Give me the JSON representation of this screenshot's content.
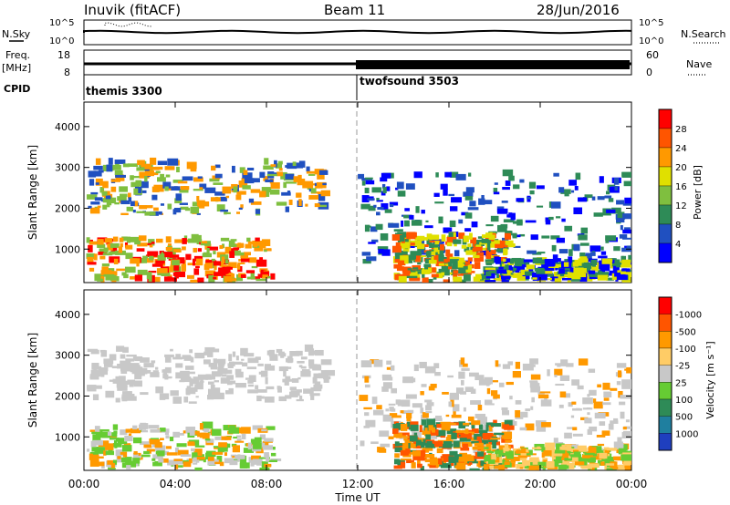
{
  "header": {
    "station": "Inuvik (fitACF)",
    "beam": "Beam 11",
    "date": "28/Jun/2016"
  },
  "aux_panels": {
    "nsky_label": "N.Sky",
    "nsky_ticks": [
      "10^5",
      "10^0"
    ],
    "nsearch_label": "N.Search",
    "nsearch_ticks": [
      "10^5",
      "10^0"
    ],
    "freq_label_1": "Freq.",
    "freq_label_2": "[MHz]",
    "freq_ticks": [
      "18",
      "8"
    ],
    "nave_label": "Nave",
    "nave_ticks": [
      "60",
      "0"
    ],
    "cpid_label": "CPID",
    "cpid_modes": [
      {
        "name": "themis 3300",
        "start_hour": 0
      },
      {
        "name": "twofsound 3503",
        "start_hour": 12
      }
    ]
  },
  "chart_data": [
    {
      "type": "heatmap",
      "title": "",
      "xlabel": "Time UT",
      "ylabel": "Slant Range [km]",
      "x_ticks": [
        "00:00",
        "04:00",
        "08:00",
        "12:00",
        "16:00",
        "20:00",
        "00:00"
      ],
      "x_range_hours": [
        0,
        24
      ],
      "y_ticks": [
        "1000",
        "2000",
        "3000",
        "4000"
      ],
      "ylim": [
        180,
        4600
      ],
      "colorbar": {
        "label": "Power [dB]",
        "ticks": [
          "4",
          "8",
          "12",
          "16",
          "20",
          "24",
          "28"
        ],
        "colors": [
          "#0000ff",
          "#2050c0",
          "#2e8b57",
          "#7fbf3f",
          "#e0e000",
          "#ff9900",
          "#ff5500",
          "#ff0000"
        ]
      },
      "scatter_regions": [
        {
          "t": [
            0.1,
            10.6
          ],
          "r": [
            1800,
            3100
          ],
          "c": [
            1,
            3,
            5
          ]
        },
        {
          "t": [
            0.1,
            8.2
          ],
          "r": [
            180,
            1200
          ],
          "c": [
            3,
            5,
            7
          ]
        },
        {
          "t": [
            12.0,
            24.0
          ],
          "r": [
            600,
            2800
          ],
          "c": [
            0,
            1,
            2
          ]
        },
        {
          "t": [
            13.5,
            18.5
          ],
          "r": [
            180,
            1300
          ],
          "c": [
            2,
            4,
            6
          ]
        },
        {
          "t": [
            17.5,
            24.0
          ],
          "r": [
            180,
            700
          ],
          "c": [
            0,
            2,
            4
          ]
        }
      ]
    },
    {
      "type": "heatmap",
      "title": "",
      "xlabel": "Time UT",
      "ylabel": "Slant Range [km]",
      "x_ticks": [
        "00:00",
        "04:00",
        "08:00",
        "12:00",
        "16:00",
        "20:00",
        "00:00"
      ],
      "x_range_hours": [
        0,
        24
      ],
      "y_ticks": [
        "1000",
        "2000",
        "3000",
        "4000"
      ],
      "ylim": [
        180,
        4600
      ],
      "colorbar": {
        "label": "Velocity [m s⁻¹]",
        "ticks": [
          "1000",
          "500",
          "100",
          "25",
          "-25",
          "-100",
          "-500",
          "-1000"
        ],
        "colors": [
          "#1f3fbf",
          "#1f7f9f",
          "#2e8b57",
          "#66cc33",
          "#c8c8c8",
          "#ffcc66",
          "#ff9900",
          "#ff5500",
          "#ff0000"
        ]
      },
      "scatter_regions": [
        {
          "t": [
            0.1,
            10.6
          ],
          "r": [
            1800,
            3100
          ],
          "c": [
            4,
            4,
            4
          ]
        },
        {
          "t": [
            0.1,
            8.2
          ],
          "r": [
            180,
            1200
          ],
          "c": [
            6,
            3,
            4
          ]
        },
        {
          "t": [
            12.0,
            24.0
          ],
          "r": [
            600,
            2800
          ],
          "c": [
            4,
            4,
            6
          ]
        },
        {
          "t": [
            13.5,
            18.5
          ],
          "r": [
            180,
            1300
          ],
          "c": [
            6,
            7,
            2
          ]
        },
        {
          "t": [
            17.5,
            24.0
          ],
          "r": [
            180,
            700
          ],
          "c": [
            5,
            6,
            3
          ]
        }
      ]
    }
  ]
}
